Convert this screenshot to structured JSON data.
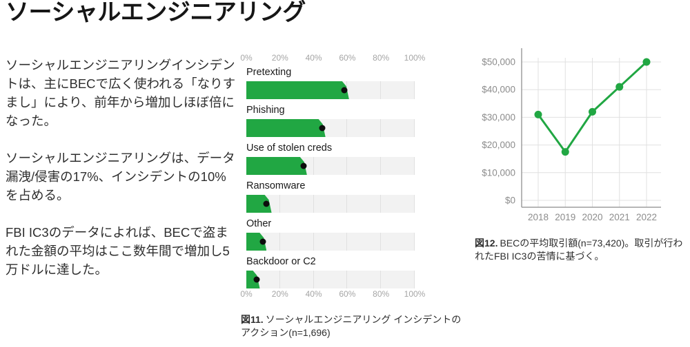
{
  "page": {
    "title": "ソーシャルエンジニアリング"
  },
  "intro": {
    "paragraphs": [
      "ソーシャルエンジニアリングインシデントは、主にBECで広く使われる「なりすまし」により、前年から増加しほぼ倍になった。",
      "ソーシャルエンジニアリングは、データ漏洩/侵害の17%、インシデントの10%を占める。",
      "FBI IC3のデータによれば、BECで盗まれた金額の平均はここ数年間で増加し5万ドルに達した。"
    ]
  },
  "colors": {
    "green": "#21a743",
    "dot": "#0d0d0d",
    "track": "#f2f2f2",
    "grid": "#e0e0e0",
    "axis_text": "#a5a5a5",
    "spine": "#9d9d9d"
  },
  "chart_data": [
    {
      "type": "bar",
      "orientation": "horizontal",
      "figure_label": "図11.",
      "caption": "ソーシャルエンジニアリング インシデントのアクション(n=1,696)",
      "categories": [
        "Pretexting",
        "Phishing",
        "Use of stolen creds",
        "Ransomware",
        "Other",
        "Backdoor or C2"
      ],
      "values": [
        58,
        45,
        34,
        12,
        10,
        6
      ],
      "bar_tip_extents": [
        61,
        47,
        36,
        15,
        12,
        8
      ],
      "x_ticks": [
        "0%",
        "20%",
        "40%",
        "60%",
        "80%",
        "100%"
      ],
      "x_tick_values": [
        0,
        20,
        40,
        60,
        80,
        100
      ],
      "xlim": [
        0,
        100
      ],
      "unit": "%",
      "grid": true,
      "legend": "none",
      "marker": "dot-at-point-estimate"
    },
    {
      "type": "line",
      "figure_label": "図12.",
      "caption": "BECの平均取引額(n=73,420)。取引が行われたFBI IC3の苦情に基づく。",
      "x": [
        "2018",
        "2019",
        "2020",
        "2021",
        "2022"
      ],
      "values": [
        31000,
        17500,
        32000,
        41000,
        50000
      ],
      "y_ticks": [
        "$0",
        "$10,000",
        "$20,000",
        "$30,000",
        "$40,000",
        "$50,000"
      ],
      "y_tick_values": [
        0,
        10000,
        20000,
        30000,
        40000,
        50000
      ],
      "ylim": [
        0,
        50000
      ],
      "grid": true,
      "legend": "none"
    }
  ]
}
